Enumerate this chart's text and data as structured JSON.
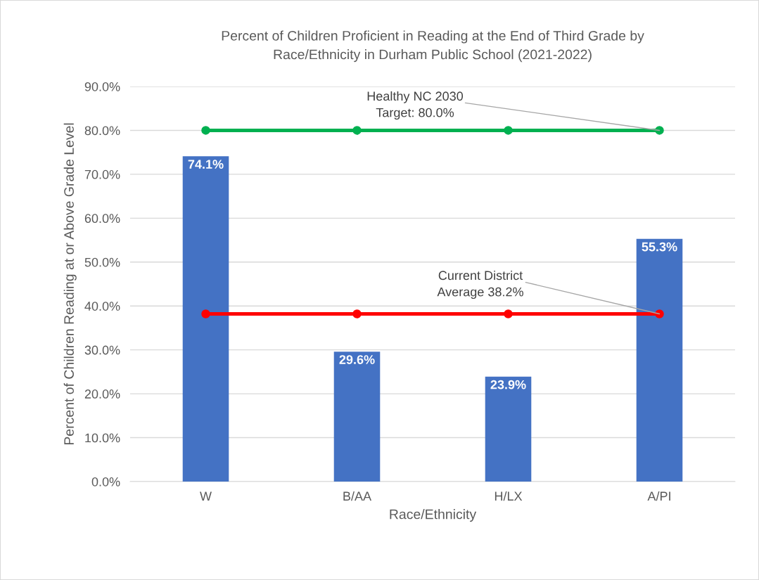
{
  "chart_data": {
    "type": "bar",
    "title": "Percent of Children Proficient in Reading at the End of Third Grade by\nRace/Ethnicity in Durham Public School (2021-2022)",
    "xlabel": "Race/Ethnicity",
    "ylabel": "Percent of Children Reading at or Above Grade Level",
    "categories": [
      "W",
      "B/AA",
      "H/LX",
      "A/PI"
    ],
    "series": [
      {
        "color": "#4472c4",
        "values": [
          74.1,
          29.6,
          23.9,
          55.3
        ],
        "value_labels": [
          "74.1%",
          "29.6%",
          "23.9%",
          "55.3%"
        ]
      },
      {
        "type": "line",
        "color": "#00b050",
        "values": [
          80.0,
          80.0,
          80.0,
          80.0
        ],
        "marker": "circle",
        "line_style": "solid"
      },
      {
        "type": "line",
        "color": "#ff0000",
        "values": [
          38.2,
          38.2,
          38.2,
          38.2
        ],
        "marker": "circle",
        "line_style": "solid"
      }
    ],
    "ylim": [
      0,
      90
    ],
    "yticks": [
      {
        "value": 0,
        "label": "0.0%"
      },
      {
        "value": 10,
        "label": "10.0%"
      },
      {
        "value": 20,
        "label": "20.0%"
      },
      {
        "value": 30,
        "label": "30.0%"
      },
      {
        "value": 40,
        "label": "40.0%"
      },
      {
        "value": 50,
        "label": "50.0%"
      },
      {
        "value": 60,
        "label": "60.0%"
      },
      {
        "value": 70,
        "label": "70.0%"
      },
      {
        "value": 80,
        "label": "80.0%"
      },
      {
        "value": 90,
        "label": "90.0%"
      }
    ],
    "grid": "y",
    "legend": false,
    "annotations": [
      {
        "text": "Healthy NC 2030\nTarget: 80.0%",
        "x": "A/PI",
        "y": 80.0
      },
      {
        "text": "Current District\nAverage 38.2%",
        "x": "A/PI",
        "y": 38.2
      }
    ]
  }
}
